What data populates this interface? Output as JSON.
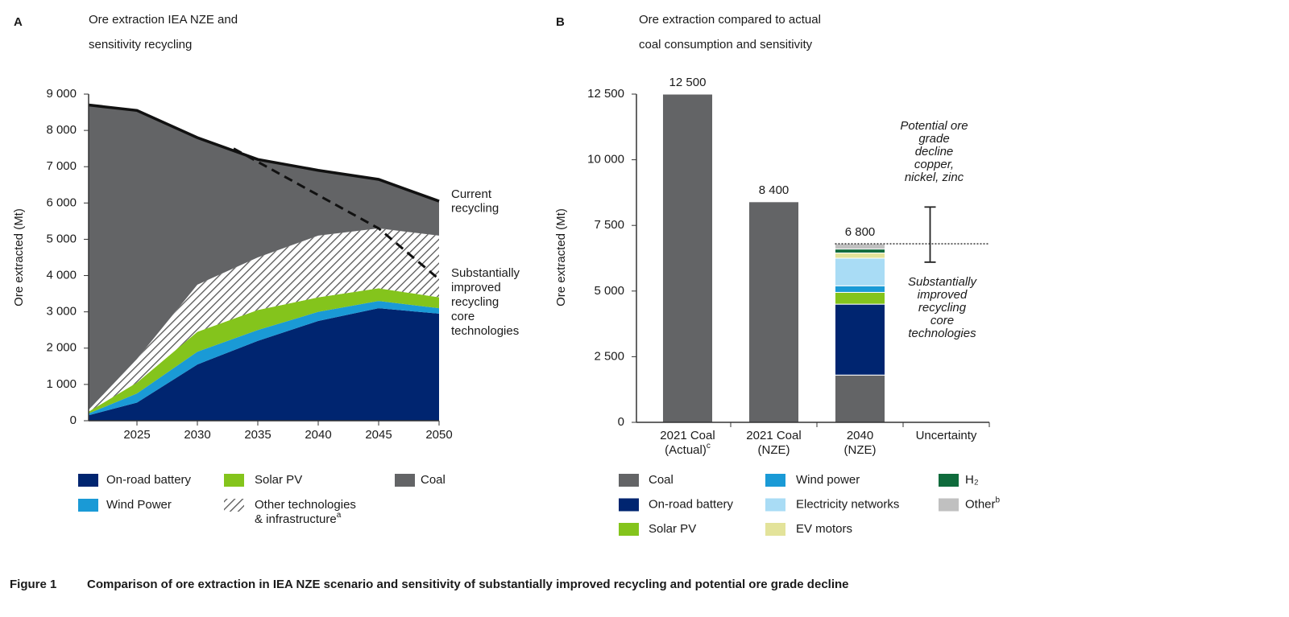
{
  "caption": {
    "label": "Figure 1",
    "text": "Comparison of ore extraction in IEA NZE scenario and sensitivity of substantially improved recycling and potential ore grade decline"
  },
  "chart_data": [
    {
      "type": "area",
      "panel": "A",
      "title": [
        "Ore extraction IEA NZE and",
        "sensitivity recycling"
      ],
      "y_label": "Ore extracted (Mt)",
      "x": [
        2021,
        2025,
        2030,
        2035,
        2040,
        2045,
        2050
      ],
      "xlim": [
        2021,
        2050
      ],
      "xticks": [
        2025,
        2030,
        2035,
        2040,
        2045,
        2050
      ],
      "ylim": [
        0,
        9000
      ],
      "yticks": [
        0,
        {
          "value": 1000,
          "label": "1 000"
        },
        {
          "value": 2000,
          "label": "2 000"
        },
        {
          "value": 3000,
          "label": "3 000"
        },
        {
          "value": 4000,
          "label": "4 000"
        },
        {
          "value": 5000,
          "label": "5 000"
        },
        {
          "value": 6000,
          "label": "6 000"
        },
        {
          "value": 7000,
          "label": "7 000"
        },
        {
          "value": 8000,
          "label": "8 000"
        },
        {
          "value": 9000,
          "label": "9 000"
        }
      ],
      "series": [
        {
          "name": "On-road battery",
          "color": "#002570",
          "values": [
            150,
            500,
            1550,
            2200,
            2750,
            3100,
            2950
          ]
        },
        {
          "name": "Wind Power",
          "color": "#1a9ad6",
          "values": [
            50,
            250,
            350,
            300,
            250,
            200,
            150
          ]
        },
        {
          "name": "Solar PV",
          "color": "#84c41c",
          "values": [
            50,
            300,
            550,
            550,
            400,
            350,
            300
          ]
        },
        {
          "name": [
            "Other technologies",
            "& infrastructure"
          ],
          "superscript": "a",
          "color": "#555555",
          "pattern": "hatch",
          "values": [
            50,
            650,
            1300,
            1450,
            1700,
            1650,
            1700
          ]
        },
        {
          "name": "Coal",
          "color": "#636466",
          "values": [
            8400,
            6850,
            4050,
            2700,
            1800,
            1350,
            950
          ]
        }
      ],
      "dashed_line": {
        "x": [
          2033,
          2045,
          2050
        ],
        "values": [
          7500,
          5300,
          3900
        ]
      },
      "annotations": [
        [
          "Current",
          "recycling"
        ],
        [
          "Substantially",
          "improved",
          "recycling",
          "core",
          "technologies"
        ]
      ]
    },
    {
      "type": "bar",
      "panel": "B",
      "title": [
        "Ore extraction compared to actual",
        "coal consumption and sensitivity"
      ],
      "y_label": "Ore extracted (Mt)",
      "categories": [
        [
          "2021 Coal",
          "(Actual)"
        ],
        [
          "2021 Coal",
          "(NZE)"
        ],
        [
          "2040",
          "(NZE)"
        ],
        [
          "Uncertainty"
        ]
      ],
      "category_superscripts": [
        "c",
        null,
        null,
        null
      ],
      "ylim": [
        0,
        12500
      ],
      "yticks": [
        0,
        {
          "value": 2500,
          "label": "2 500"
        },
        {
          "value": 5000,
          "label": "5 000"
        },
        {
          "value": 7500,
          "label": "7 500"
        },
        {
          "value": 10000,
          "label": "10 000"
        },
        {
          "value": 12500,
          "label": "12 500"
        }
      ],
      "stacked": true,
      "series": [
        {
          "name": "Coal",
          "color": "#636466",
          "values": [
            12500,
            8400,
            1800,
            null
          ]
        },
        {
          "name": "On-road battery",
          "color": "#002570",
          "values": [
            null,
            null,
            2700,
            null
          ]
        },
        {
          "name": "Solar PV",
          "color": "#84c41c",
          "values": [
            null,
            null,
            450,
            null
          ]
        },
        {
          "name": "Wind power",
          "color": "#1a9ad6",
          "values": [
            null,
            null,
            250,
            null
          ]
        },
        {
          "name": "Electricity networks",
          "color": "#a9dcf5",
          "values": [
            null,
            null,
            1050,
            null
          ]
        },
        {
          "name": "EV motors",
          "color": "#e3e39a",
          "values": [
            null,
            null,
            200,
            null
          ]
        },
        {
          "name": "H₂",
          "color": "#0f6b3c",
          "values": [
            null,
            null,
            150,
            null
          ]
        },
        {
          "name": "Other",
          "superscript": "b",
          "color": "#c0c0c0",
          "values": [
            null,
            null,
            200,
            null
          ]
        }
      ],
      "totals": [
        12500,
        8400,
        6800,
        null
      ],
      "value_labels": [
        "12 500",
        "8 400",
        "6 800",
        null
      ],
      "uncertainty": {
        "value": 6800,
        "upper": 8200,
        "lower": 6100
      },
      "annotations": [
        [
          "Potential ore",
          "grade",
          "decline",
          "copper,",
          "nickel, zinc"
        ],
        [
          "Substantially",
          "improved",
          "recycling",
          "core",
          "technologies"
        ]
      ]
    }
  ]
}
